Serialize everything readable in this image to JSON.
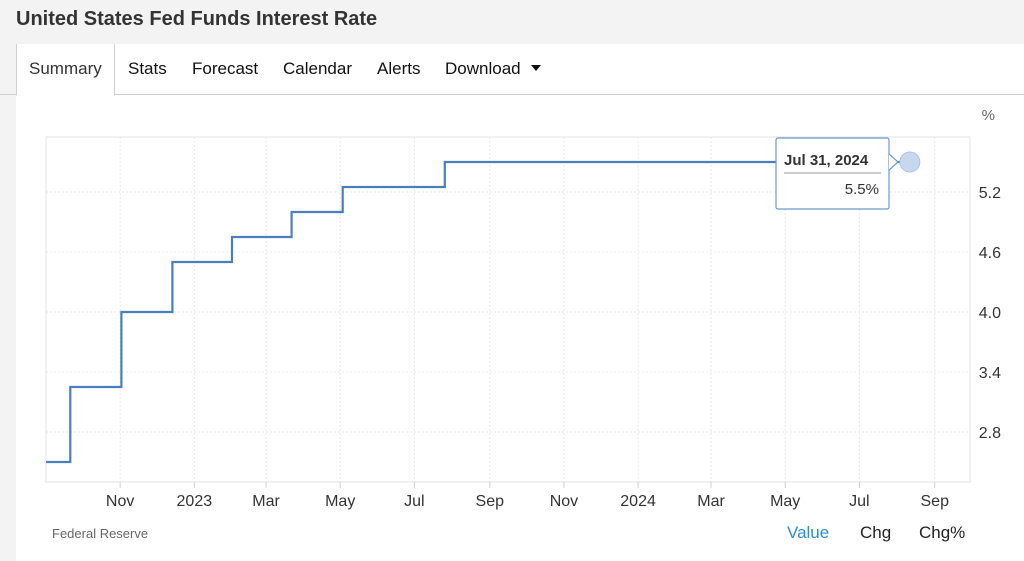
{
  "page": {
    "title": "United States Fed Funds Interest Rate"
  },
  "tabs": [
    {
      "label": "Summary",
      "active": true
    },
    {
      "label": "Stats"
    },
    {
      "label": "Forecast"
    },
    {
      "label": "Calendar"
    },
    {
      "label": "Alerts"
    },
    {
      "label": "Download",
      "has_dropdown": true
    }
  ],
  "chart_data": {
    "type": "line",
    "step": true,
    "unit_label": "%",
    "y_ticks": [
      2.8,
      3.4,
      4.0,
      4.6,
      5.2
    ],
    "ylim": [
      2.3,
      5.75
    ],
    "x_range": [
      "2022-09-01",
      "2024-09-30"
    ],
    "x_ticks": [
      {
        "date": "2022-11-01",
        "label": "Nov"
      },
      {
        "date": "2023-01-01",
        "label": "2023"
      },
      {
        "date": "2023-03-01",
        "label": "Mar"
      },
      {
        "date": "2023-05-01",
        "label": "May"
      },
      {
        "date": "2023-07-01",
        "label": "Jul"
      },
      {
        "date": "2023-09-01",
        "label": "Sep"
      },
      {
        "date": "2023-11-01",
        "label": "Nov"
      },
      {
        "date": "2024-01-01",
        "label": "2024"
      },
      {
        "date": "2024-03-01",
        "label": "Mar"
      },
      {
        "date": "2024-05-01",
        "label": "May"
      },
      {
        "date": "2024-07-01",
        "label": "Jul"
      },
      {
        "date": "2024-09-01",
        "label": "Sep"
      }
    ],
    "series": [
      {
        "color": "#4a7fbd",
        "points": [
          {
            "x": "2022-09-01",
            "y": 2.5
          },
          {
            "x": "2022-09-21",
            "y": 3.25
          },
          {
            "x": "2022-11-02",
            "y": 4.0
          },
          {
            "x": "2022-12-14",
            "y": 4.5
          },
          {
            "x": "2023-02-01",
            "y": 4.75
          },
          {
            "x": "2023-03-22",
            "y": 5.0
          },
          {
            "x": "2023-05-03",
            "y": 5.25
          },
          {
            "x": "2023-07-26",
            "y": 5.5
          },
          {
            "x": "2024-07-31",
            "y": 5.5
          }
        ]
      }
    ],
    "tooltip": {
      "date": "Jul 31, 2024",
      "value": "5.5%"
    },
    "grid": true
  },
  "footer": {
    "source": "Federal Reserve",
    "metrics": [
      {
        "label": "Value",
        "active": true
      },
      {
        "label": "Chg"
      },
      {
        "label": "Chg%"
      }
    ]
  },
  "colors": {
    "accent": "#2a8fd4",
    "line": "#4a7fbd"
  }
}
